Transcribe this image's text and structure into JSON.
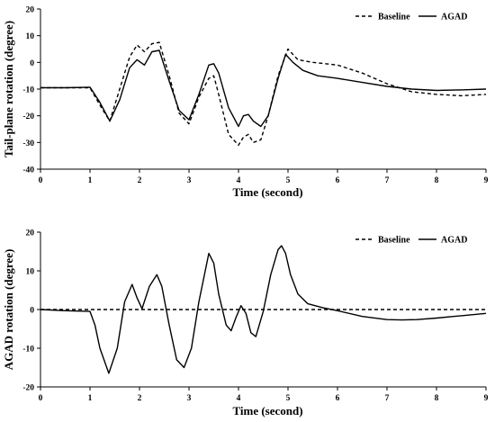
{
  "chart_data": [
    {
      "type": "line",
      "xlabel": "Time (second)",
      "ylabel": "Tail-plane rotation (degree)",
      "xlim": [
        0,
        9
      ],
      "ylim": [
        -40,
        20
      ],
      "x_ticks": [
        "0",
        "1",
        "2",
        "3",
        "4",
        "5",
        "6",
        "7",
        "8",
        "9"
      ],
      "y_ticks": [
        "-40",
        "-30",
        "-20",
        "-10",
        "0",
        "10",
        "20"
      ],
      "grid": false,
      "legend_position": "top-right",
      "series": [
        {
          "name": "Baseline",
          "style": "dashed",
          "x": [
            0,
            0.5,
            1.0,
            1.2,
            1.4,
            1.6,
            1.8,
            1.95,
            2.1,
            2.25,
            2.4,
            2.6,
            2.8,
            3.0,
            3.2,
            3.4,
            3.5,
            3.6,
            3.8,
            4.0,
            4.1,
            4.2,
            4.3,
            4.45,
            4.6,
            4.8,
            5.0,
            5.2,
            5.5,
            6.0,
            6.5,
            7.0,
            7.5,
            8.0,
            8.5,
            9.0
          ],
          "values": [
            -9.5,
            -9.5,
            -9.5,
            -16,
            -22,
            -10,
            2,
            6.5,
            4,
            7,
            7.5,
            -5,
            -19,
            -23,
            -13,
            -6,
            -5,
            -12,
            -27,
            -31,
            -28,
            -27,
            -30,
            -29,
            -20,
            -5,
            5,
            1,
            0,
            -1,
            -4,
            -8,
            -11,
            -12,
            -12.5,
            -12
          ]
        },
        {
          "name": "AGAD",
          "style": "solid",
          "x": [
            0,
            0.5,
            1.0,
            1.2,
            1.4,
            1.6,
            1.8,
            1.95,
            2.1,
            2.25,
            2.4,
            2.6,
            2.8,
            3.0,
            3.2,
            3.4,
            3.5,
            3.6,
            3.8,
            4.0,
            4.1,
            4.2,
            4.3,
            4.45,
            4.6,
            4.8,
            4.95,
            5.1,
            5.3,
            5.6,
            6.0,
            6.5,
            7.0,
            7.5,
            8.0,
            8.5,
            9.0
          ],
          "values": [
            -9.5,
            -9.5,
            -9.3,
            -15,
            -22,
            -14,
            -2,
            1,
            -1,
            4,
            4.5,
            -7,
            -18,
            -21.5,
            -12,
            -1,
            -0.5,
            -4,
            -17,
            -24,
            -20,
            -19.5,
            -22,
            -24,
            -20,
            -6,
            3,
            0,
            -3,
            -5,
            -6,
            -7.5,
            -9,
            -10,
            -10.5,
            -10.3,
            -10
          ]
        }
      ]
    },
    {
      "type": "line",
      "xlabel": "Time (second)",
      "ylabel": "AGAD rotation (degree)",
      "xlim": [
        0,
        9
      ],
      "ylim": [
        -20,
        20
      ],
      "x_ticks": [
        "0",
        "1",
        "2",
        "3",
        "4",
        "5",
        "6",
        "7",
        "8",
        "9"
      ],
      "y_ticks": [
        "-20",
        "-10",
        "0",
        "10",
        "20"
      ],
      "grid": false,
      "legend_position": "top-right",
      "series": [
        {
          "name": "Baseline",
          "style": "dashed",
          "x": [
            0,
            9
          ],
          "values": [
            0,
            0
          ]
        },
        {
          "name": "AGAD",
          "style": "solid",
          "x": [
            0,
            0.5,
            1.0,
            1.1,
            1.2,
            1.38,
            1.55,
            1.7,
            1.85,
            1.95,
            2.05,
            2.2,
            2.35,
            2.45,
            2.6,
            2.75,
            2.9,
            3.05,
            3.2,
            3.4,
            3.5,
            3.6,
            3.75,
            3.85,
            3.95,
            4.05,
            4.15,
            4.25,
            4.35,
            4.5,
            4.65,
            4.8,
            4.87,
            4.95,
            5.05,
            5.2,
            5.4,
            5.7,
            6.0,
            6.5,
            7.0,
            7.3,
            7.6,
            8.0,
            8.5,
            9.0
          ],
          "values": [
            0,
            -0.3,
            -0.5,
            -4,
            -10,
            -16.5,
            -10,
            2,
            6.5,
            3,
            0.2,
            6,
            9,
            6,
            -4,
            -13,
            -15,
            -10,
            2,
            14.5,
            12,
            4,
            -4,
            -5.5,
            -2,
            1,
            -1,
            -6,
            -7,
            -0.5,
            9,
            15.5,
            16.5,
            14.5,
            9,
            4,
            1.5,
            0.5,
            -0.3,
            -1.8,
            -2.6,
            -2.7,
            -2.6,
            -2.2,
            -1.6,
            -1
          ]
        }
      ]
    }
  ]
}
